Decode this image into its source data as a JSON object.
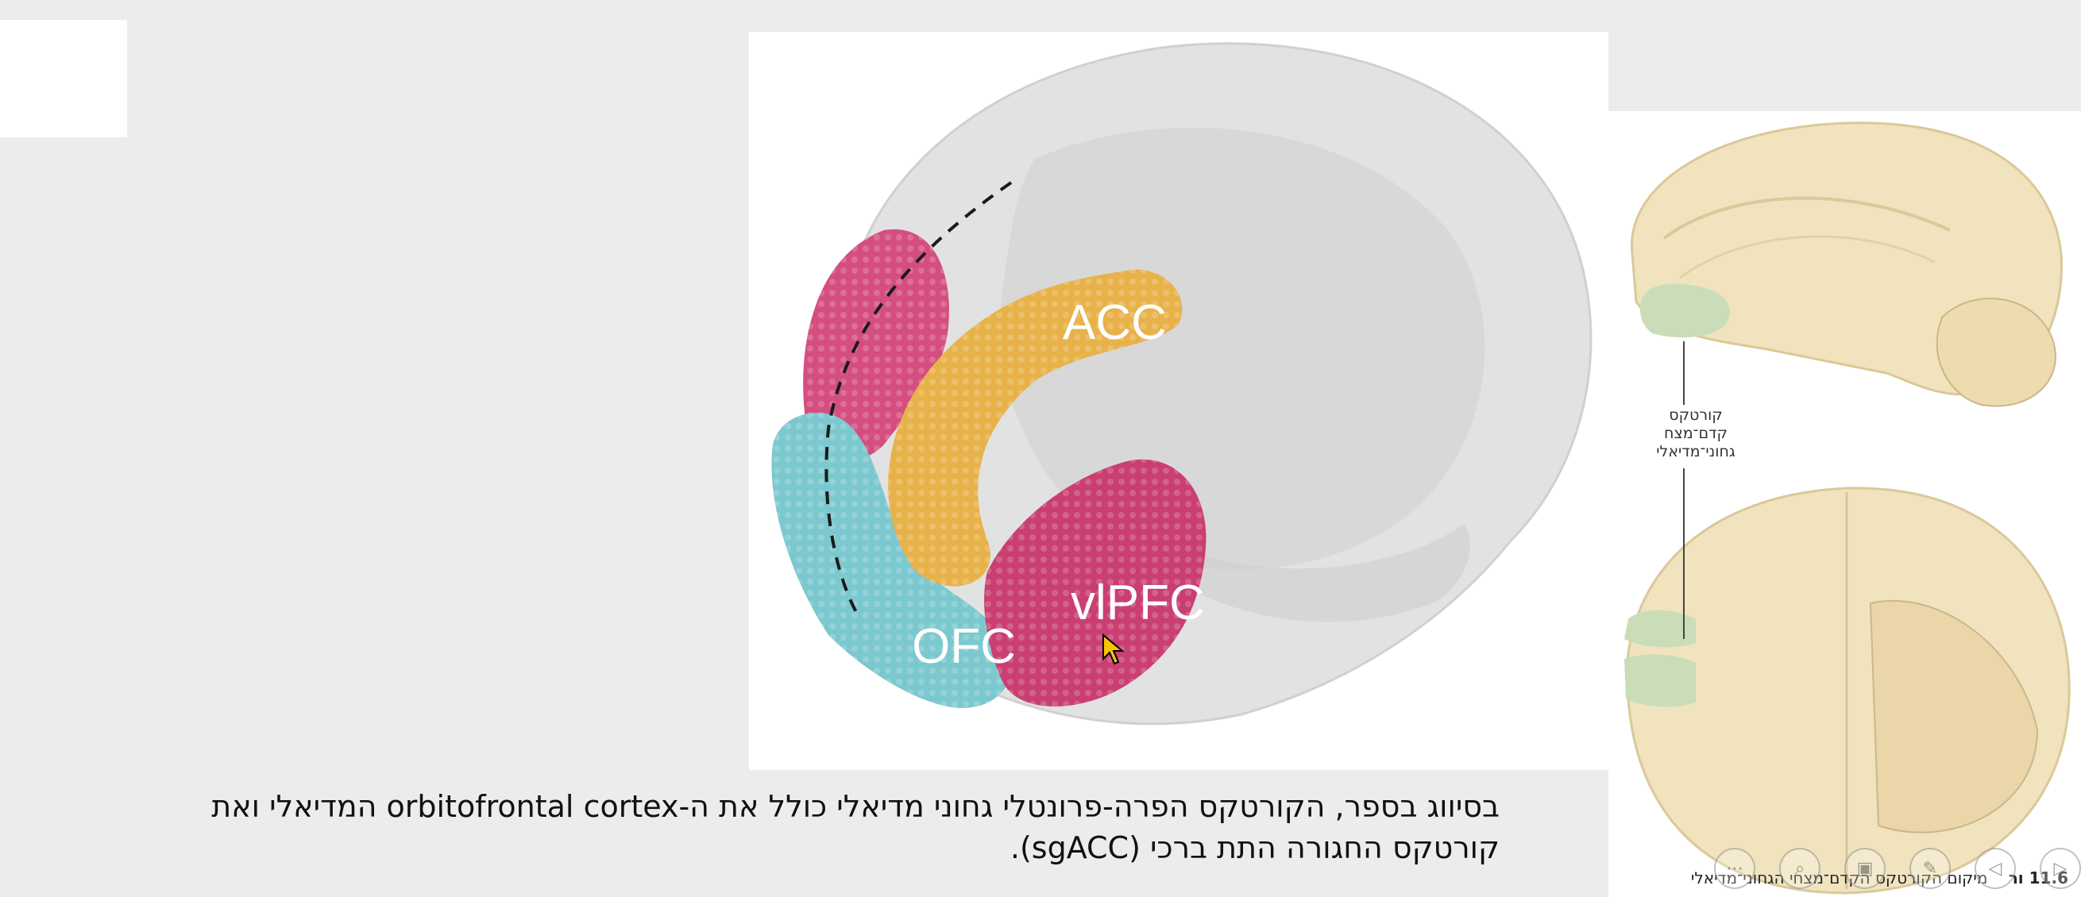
{
  "brain_labels": {
    "acc": "ACC",
    "vlpfc": "vlPFC",
    "ofc": "OFC"
  },
  "atlas_callout": {
    "line1": "קורטקס",
    "line2": "קדם־מצח",
    "line3": "גחוני־מדיאלי"
  },
  "figure_caption": {
    "number": "11.6 ור",
    "text": "מיקום הקורטקס הקדם־מצחי הגחוני־מדיאלי"
  },
  "slide_text": {
    "line1": "בסיווג בספר, הקורטקס הפרה-פרונטלי גחוני מדיאלי כולל את ה-orbitofrontal cortex המדיאלי ואת",
    "line2": "קורטקס החגורה התת ברכי (sgACC)."
  },
  "colors": {
    "acc": "#e8b24a",
    "vlpfc": "#c93f72",
    "ofc": "#78c6cd",
    "vmpfc_highlight": "#c9ddb8",
    "atlas_tissue": "#f1e3bd"
  },
  "player_controls": [
    {
      "icon": "more-icon",
      "glyph": "⋯"
    },
    {
      "icon": "zoom-icon",
      "glyph": "⌕"
    },
    {
      "icon": "slides-icon",
      "glyph": "▣"
    },
    {
      "icon": "pen-icon",
      "glyph": "✎"
    },
    {
      "icon": "prev-icon",
      "glyph": "◁"
    },
    {
      "icon": "next-icon",
      "glyph": "▷"
    }
  ]
}
